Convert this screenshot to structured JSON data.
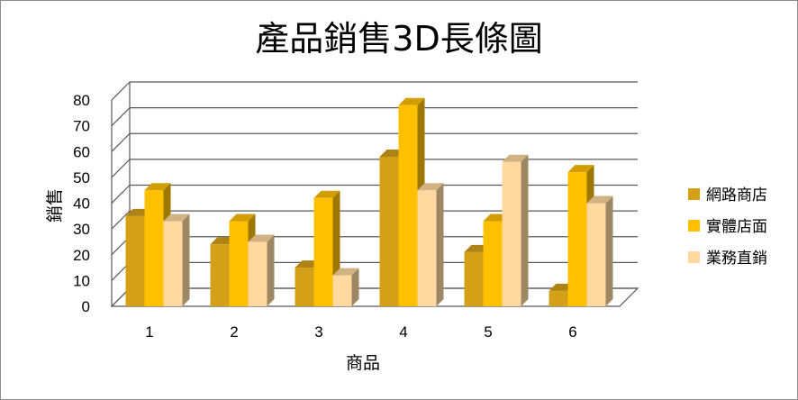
{
  "chart_data": {
    "type": "bar",
    "title": "產品銷售3D長條圖",
    "xlabel": "商品",
    "ylabel": "銷售",
    "categories": [
      "1",
      "2",
      "3",
      "4",
      "5",
      "6"
    ],
    "ylim": [
      0,
      80
    ],
    "yticks": [
      0,
      10,
      20,
      30,
      40,
      50,
      60,
      70,
      80
    ],
    "grid": true,
    "legend_position": "right",
    "series": [
      {
        "name": "網路商店",
        "color": "#D4A017",
        "values": [
          35,
          24,
          15,
          58,
          21,
          6
        ]
      },
      {
        "name": "實體店面",
        "color": "#FFC000",
        "values": [
          45,
          33,
          42,
          78,
          33,
          52
        ]
      },
      {
        "name": "業務直銷",
        "color": "#FFD9A0",
        "values": [
          33,
          25,
          12,
          45,
          56,
          40
        ]
      }
    ]
  }
}
